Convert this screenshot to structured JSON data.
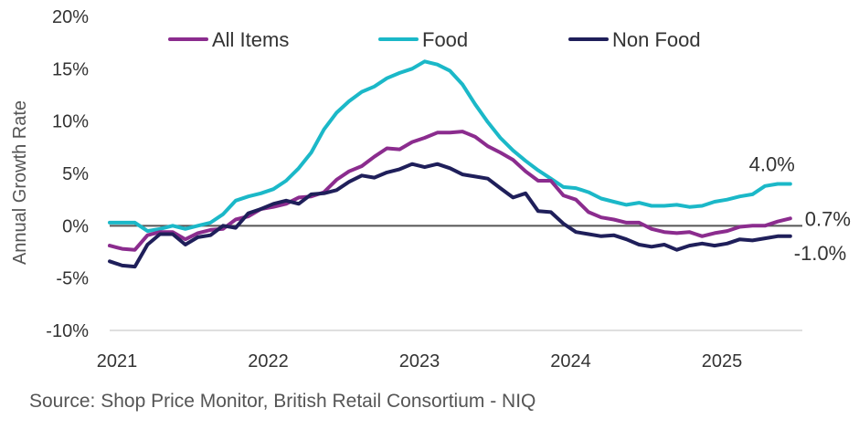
{
  "chart_data": {
    "type": "line",
    "ylabel": "Annual Growth Rate",
    "ylim": [
      -10,
      20
    ],
    "yticks": [
      -10,
      -5,
      0,
      5,
      10,
      15,
      20
    ],
    "ytick_labels": [
      "-10%",
      "-5%",
      "0%",
      "5%",
      "10%",
      "15%",
      "20%"
    ],
    "xlim": [
      2021.0,
      2025.58
    ],
    "xticks": [
      2021,
      2022,
      2023,
      2024,
      2025
    ],
    "xtick_labels": [
      "2021",
      "2022",
      "2023",
      "2024",
      "2025"
    ],
    "grid": false,
    "legend_position": "top",
    "zero_line": true,
    "series": [
      {
        "name": "All Items",
        "color": "#8B2C8E",
        "end_label": "0.7%",
        "x": [
          2021.0,
          2021.083,
          2021.167,
          2021.25,
          2021.333,
          2021.417,
          2021.5,
          2021.583,
          2021.667,
          2021.75,
          2021.833,
          2021.917,
          2022.0,
          2022.083,
          2022.167,
          2022.25,
          2022.333,
          2022.417,
          2022.5,
          2022.583,
          2022.667,
          2022.75,
          2022.833,
          2022.917,
          2023.0,
          2023.083,
          2023.167,
          2023.25,
          2023.333,
          2023.417,
          2023.5,
          2023.583,
          2023.667,
          2023.75,
          2023.833,
          2023.917,
          2024.0,
          2024.083,
          2024.167,
          2024.25,
          2024.333,
          2024.417,
          2024.5,
          2024.583,
          2024.667,
          2024.75,
          2024.833,
          2024.917,
          2025.0,
          2025.083,
          2025.167,
          2025.25,
          2025.333,
          2025.417,
          2025.5
        ],
        "y": [
          -1.9,
          -2.2,
          -2.3,
          -0.9,
          -0.6,
          -0.6,
          -1.3,
          -0.7,
          -0.4,
          -0.3,
          0.6,
          0.9,
          1.6,
          1.8,
          2.1,
          2.7,
          2.8,
          3.2,
          4.4,
          5.2,
          5.7,
          6.6,
          7.4,
          7.3,
          8.0,
          8.4,
          8.9,
          8.9,
          9.0,
          8.5,
          7.6,
          7.0,
          6.3,
          5.2,
          4.3,
          4.3,
          2.9,
          2.5,
          1.3,
          0.8,
          0.6,
          0.3,
          0.3,
          -0.3,
          -0.6,
          -0.7,
          -0.6,
          -1.0,
          -0.7,
          -0.5,
          -0.1,
          0.0,
          0.0,
          0.4,
          0.7
        ]
      },
      {
        "name": "Food",
        "color": "#1BB8C8",
        "end_label": "4.0%",
        "x": [
          2021.0,
          2021.083,
          2021.167,
          2021.25,
          2021.333,
          2021.417,
          2021.5,
          2021.583,
          2021.667,
          2021.75,
          2021.833,
          2021.917,
          2022.0,
          2022.083,
          2022.167,
          2022.25,
          2022.333,
          2022.417,
          2022.5,
          2022.583,
          2022.667,
          2022.75,
          2022.833,
          2022.917,
          2023.0,
          2023.083,
          2023.167,
          2023.25,
          2023.333,
          2023.417,
          2023.5,
          2023.583,
          2023.667,
          2023.75,
          2023.833,
          2023.917,
          2024.0,
          2024.083,
          2024.167,
          2024.25,
          2024.333,
          2024.417,
          2024.5,
          2024.583,
          2024.667,
          2024.75,
          2024.833,
          2024.917,
          2025.0,
          2025.083,
          2025.167,
          2025.25,
          2025.333,
          2025.417,
          2025.5
        ],
        "y": [
          0.3,
          0.3,
          0.3,
          -0.5,
          -0.3,
          0.0,
          -0.3,
          0.0,
          0.3,
          1.1,
          2.4,
          2.8,
          3.1,
          3.5,
          4.3,
          5.5,
          7.0,
          9.2,
          10.8,
          11.9,
          12.8,
          13.3,
          14.1,
          14.6,
          15.0,
          15.7,
          15.4,
          14.8,
          13.5,
          11.6,
          9.9,
          8.4,
          7.2,
          6.2,
          5.3,
          4.5,
          3.7,
          3.6,
          3.2,
          2.6,
          2.3,
          2.0,
          2.2,
          1.9,
          1.9,
          2.0,
          1.8,
          1.9,
          2.3,
          2.5,
          2.8,
          3.0,
          3.8,
          4.0,
          4.0
        ]
      },
      {
        "name": "Non Food",
        "color": "#1F1F5A",
        "end_label": "-1.0%",
        "x": [
          2021.0,
          2021.083,
          2021.167,
          2021.25,
          2021.333,
          2021.417,
          2021.5,
          2021.583,
          2021.667,
          2021.75,
          2021.833,
          2021.917,
          2022.0,
          2022.083,
          2022.167,
          2022.25,
          2022.333,
          2022.417,
          2022.5,
          2022.583,
          2022.667,
          2022.75,
          2022.833,
          2022.917,
          2023.0,
          2023.083,
          2023.167,
          2023.25,
          2023.333,
          2023.417,
          2023.5,
          2023.583,
          2023.667,
          2023.75,
          2023.833,
          2023.917,
          2024.0,
          2024.083,
          2024.167,
          2024.25,
          2024.333,
          2024.417,
          2024.5,
          2024.583,
          2024.667,
          2024.75,
          2024.833,
          2024.917,
          2025.0,
          2025.083,
          2025.167,
          2025.25,
          2025.333,
          2025.417,
          2025.5
        ],
        "y": [
          -3.4,
          -3.8,
          -3.9,
          -1.8,
          -0.8,
          -0.8,
          -1.8,
          -1.1,
          -0.9,
          0.0,
          -0.2,
          1.2,
          1.6,
          2.1,
          2.4,
          2.1,
          3.0,
          3.1,
          3.4,
          4.2,
          4.8,
          4.6,
          5.1,
          5.4,
          5.9,
          5.6,
          5.9,
          5.5,
          4.9,
          4.7,
          4.5,
          3.6,
          2.7,
          3.1,
          1.4,
          1.3,
          0.2,
          -0.6,
          -0.8,
          -1.0,
          -0.9,
          -1.3,
          -1.8,
          -2.0,
          -1.8,
          -2.3,
          -1.9,
          -1.7,
          -1.9,
          -1.7,
          -1.3,
          -1.4,
          -1.2,
          -1.0,
          -1.0
        ]
      }
    ]
  },
  "source_text": "Source: Shop Price Monitor, British Retail Consortium - NIQ"
}
